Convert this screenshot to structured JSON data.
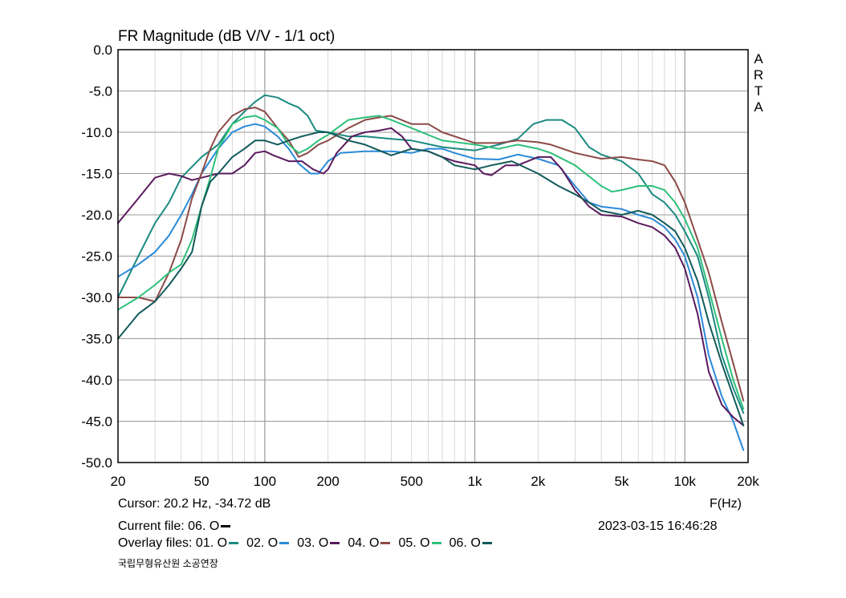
{
  "chart_data": {
    "type": "line",
    "title": "FR Magnitude (dB V/V - 1/1 oct)",
    "xlabel": "F(Hz)",
    "ylabel": "",
    "x_scale": "log",
    "xlim": [
      20,
      20000
    ],
    "ylim": [
      -50,
      0
    ],
    "grid": true,
    "x_ticks": [
      20,
      50,
      100,
      200,
      500,
      1000,
      2000,
      5000,
      10000,
      20000
    ],
    "x_tick_labels": [
      "20",
      "50",
      "100",
      "200",
      "500",
      "1k",
      "2k",
      "5k",
      "10k",
      "20k"
    ],
    "y_ticks": [
      0,
      -5,
      -10,
      -15,
      -20,
      -25,
      -30,
      -35,
      -40,
      -45,
      -50
    ],
    "y_tick_labels": [
      "0.0",
      "-5.0",
      "-10.0",
      "-15.0",
      "-20.0",
      "-25.0",
      "-30.0",
      "-35.0",
      "-40.0",
      "-45.0",
      "-50.0"
    ],
    "right_label": [
      "A",
      "R",
      "T",
      "A"
    ],
    "series": [
      {
        "name": "01. O",
        "color": "#1b8a80",
        "points": [
          [
            20,
            -30
          ],
          [
            25,
            -25
          ],
          [
            30,
            -21
          ],
          [
            35,
            -18.5
          ],
          [
            40,
            -15.5
          ],
          [
            50,
            -13
          ],
          [
            60,
            -11.5
          ],
          [
            70,
            -9
          ],
          [
            80,
            -7.5
          ],
          [
            90,
            -6.3
          ],
          [
            100,
            -5.5
          ],
          [
            115,
            -5.8
          ],
          [
            130,
            -6.5
          ],
          [
            145,
            -7
          ],
          [
            160,
            -8
          ],
          [
            175,
            -9.8
          ],
          [
            200,
            -10
          ],
          [
            250,
            -10.5
          ],
          [
            300,
            -10.5
          ],
          [
            400,
            -10.8
          ],
          [
            500,
            -11
          ],
          [
            700,
            -11.8
          ],
          [
            1000,
            -12.2
          ],
          [
            1300,
            -11.5
          ],
          [
            1600,
            -10.8
          ],
          [
            1900,
            -9
          ],
          [
            2200,
            -8.5
          ],
          [
            2600,
            -8.5
          ],
          [
            3000,
            -9.5
          ],
          [
            3500,
            -11.8
          ],
          [
            4000,
            -12.7
          ],
          [
            5000,
            -13.5
          ],
          [
            6000,
            -15
          ],
          [
            7000,
            -17.5
          ],
          [
            8000,
            -18.5
          ],
          [
            9000,
            -20
          ],
          [
            10000,
            -22
          ],
          [
            11500,
            -25
          ],
          [
            13000,
            -30
          ],
          [
            15000,
            -37
          ],
          [
            17000,
            -41
          ],
          [
            19000,
            -44
          ]
        ]
      },
      {
        "name": "02. O",
        "color": "#2a8ad8",
        "points": [
          [
            20,
            -27.5
          ],
          [
            25,
            -26
          ],
          [
            30,
            -24.5
          ],
          [
            35,
            -22.5
          ],
          [
            40,
            -20
          ],
          [
            45,
            -17.5
          ],
          [
            50,
            -15
          ],
          [
            60,
            -12
          ],
          [
            70,
            -10
          ],
          [
            80,
            -9.3
          ],
          [
            90,
            -9
          ],
          [
            100,
            -9.3
          ],
          [
            115,
            -10.5
          ],
          [
            130,
            -12
          ],
          [
            145,
            -13.8
          ],
          [
            165,
            -15
          ],
          [
            180,
            -15
          ],
          [
            200,
            -13.5
          ],
          [
            230,
            -12.5
          ],
          [
            300,
            -12.3
          ],
          [
            400,
            -12.3
          ],
          [
            500,
            -12.5
          ],
          [
            600,
            -12
          ],
          [
            700,
            -12
          ],
          [
            800,
            -12.5
          ],
          [
            1000,
            -13.2
          ],
          [
            1300,
            -13.3
          ],
          [
            1600,
            -12.7
          ],
          [
            2000,
            -13.2
          ],
          [
            2500,
            -14
          ],
          [
            3000,
            -16.5
          ],
          [
            3500,
            -18.5
          ],
          [
            4000,
            -19
          ],
          [
            5000,
            -19.3
          ],
          [
            6000,
            -20
          ],
          [
            7000,
            -20.5
          ],
          [
            8000,
            -21.5
          ],
          [
            9000,
            -23
          ],
          [
            10000,
            -25
          ],
          [
            11500,
            -30
          ],
          [
            13000,
            -37
          ],
          [
            15000,
            -42
          ],
          [
            17000,
            -45
          ],
          [
            19000,
            -48.5
          ]
        ]
      },
      {
        "name": "03. O",
        "color": "#5a1a5e",
        "points": [
          [
            20,
            -21
          ],
          [
            25,
            -18
          ],
          [
            30,
            -15.5
          ],
          [
            35,
            -15
          ],
          [
            40,
            -15.3
          ],
          [
            45,
            -15.8
          ],
          [
            50,
            -15.5
          ],
          [
            60,
            -15
          ],
          [
            70,
            -15
          ],
          [
            80,
            -14
          ],
          [
            90,
            -12.5
          ],
          [
            100,
            -12.3
          ],
          [
            110,
            -12.8
          ],
          [
            130,
            -13.5
          ],
          [
            150,
            -13.5
          ],
          [
            170,
            -14.5
          ],
          [
            190,
            -15
          ],
          [
            200,
            -14.5
          ],
          [
            220,
            -12.5
          ],
          [
            260,
            -10.5
          ],
          [
            300,
            -10
          ],
          [
            350,
            -9.8
          ],
          [
            400,
            -9.5
          ],
          [
            450,
            -10.5
          ],
          [
            500,
            -12
          ],
          [
            600,
            -12.3
          ],
          [
            700,
            -13
          ],
          [
            800,
            -13.5
          ],
          [
            1000,
            -14
          ],
          [
            1100,
            -15
          ],
          [
            1200,
            -15.2
          ],
          [
            1400,
            -14
          ],
          [
            1600,
            -14
          ],
          [
            2000,
            -13
          ],
          [
            2300,
            -13
          ],
          [
            2600,
            -14.5
          ],
          [
            3000,
            -17
          ],
          [
            3500,
            -19
          ],
          [
            4000,
            -20
          ],
          [
            5000,
            -20.2
          ],
          [
            6000,
            -21
          ],
          [
            7000,
            -21.5
          ],
          [
            8000,
            -22.5
          ],
          [
            9000,
            -24
          ],
          [
            10000,
            -26.5
          ],
          [
            11500,
            -32
          ],
          [
            13000,
            -39
          ],
          [
            15000,
            -43
          ],
          [
            17000,
            -44.5
          ],
          [
            19000,
            -45.5
          ]
        ]
      },
      {
        "name": "04. O",
        "color": "#8c4a48",
        "points": [
          [
            20,
            -30
          ],
          [
            25,
            -30
          ],
          [
            30,
            -30.5
          ],
          [
            35,
            -27
          ],
          [
            40,
            -23
          ],
          [
            45,
            -18
          ],
          [
            50,
            -15
          ],
          [
            55,
            -12
          ],
          [
            60,
            -10
          ],
          [
            70,
            -8
          ],
          [
            80,
            -7.2
          ],
          [
            90,
            -7
          ],
          [
            100,
            -7.5
          ],
          [
            115,
            -9.5
          ],
          [
            130,
            -11
          ],
          [
            145,
            -13
          ],
          [
            160,
            -12.5
          ],
          [
            180,
            -11.5
          ],
          [
            200,
            -11
          ],
          [
            250,
            -9.5
          ],
          [
            300,
            -8.5
          ],
          [
            350,
            -8.2
          ],
          [
            400,
            -8
          ],
          [
            500,
            -9
          ],
          [
            600,
            -9
          ],
          [
            700,
            -10
          ],
          [
            1000,
            -11.3
          ],
          [
            1300,
            -11.3
          ],
          [
            1600,
            -11
          ],
          [
            2000,
            -11.2
          ],
          [
            2300,
            -11.5
          ],
          [
            3000,
            -12.5
          ],
          [
            4000,
            -13.2
          ],
          [
            5000,
            -13
          ],
          [
            6000,
            -13.3
          ],
          [
            7000,
            -13.5
          ],
          [
            8000,
            -14
          ],
          [
            9000,
            -16
          ],
          [
            10000,
            -18.5
          ],
          [
            11500,
            -23
          ],
          [
            13000,
            -27
          ],
          [
            15000,
            -33
          ],
          [
            17000,
            -38
          ],
          [
            19000,
            -42.5
          ]
        ]
      },
      {
        "name": "05. O",
        "color": "#2ec07a",
        "points": [
          [
            20,
            -31.5
          ],
          [
            25,
            -30
          ],
          [
            30,
            -28.5
          ],
          [
            35,
            -27
          ],
          [
            40,
            -26
          ],
          [
            45,
            -23
          ],
          [
            50,
            -19
          ],
          [
            55,
            -15.5
          ],
          [
            60,
            -12
          ],
          [
            70,
            -9
          ],
          [
            80,
            -8.2
          ],
          [
            90,
            -8
          ],
          [
            100,
            -8.5
          ],
          [
            115,
            -9.5
          ],
          [
            130,
            -11.5
          ],
          [
            145,
            -12.5
          ],
          [
            160,
            -12
          ],
          [
            180,
            -11
          ],
          [
            200,
            -10.3
          ],
          [
            250,
            -8.5
          ],
          [
            300,
            -8.2
          ],
          [
            350,
            -8
          ],
          [
            400,
            -8.5
          ],
          [
            500,
            -9.5
          ],
          [
            700,
            -11
          ],
          [
            1000,
            -11.5
          ],
          [
            1300,
            -12
          ],
          [
            1600,
            -11.5
          ],
          [
            2000,
            -12
          ],
          [
            2300,
            -12.5
          ],
          [
            3000,
            -14
          ],
          [
            4000,
            -16.5
          ],
          [
            4500,
            -17.2
          ],
          [
            5000,
            -17
          ],
          [
            6000,
            -16.5
          ],
          [
            7000,
            -16.5
          ],
          [
            8000,
            -17
          ],
          [
            9000,
            -18.5
          ],
          [
            10000,
            -20.5
          ],
          [
            11500,
            -24
          ],
          [
            13000,
            -29
          ],
          [
            15000,
            -35
          ],
          [
            17000,
            -40
          ],
          [
            19000,
            -43.5
          ]
        ]
      },
      {
        "name": "06. O",
        "color": "#125a5a",
        "points": [
          [
            20,
            -35
          ],
          [
            25,
            -32
          ],
          [
            30,
            -30.5
          ],
          [
            35,
            -28.5
          ],
          [
            40,
            -26.5
          ],
          [
            45,
            -24.5
          ],
          [
            50,
            -19
          ],
          [
            55,
            -16
          ],
          [
            60,
            -15
          ],
          [
            70,
            -13
          ],
          [
            80,
            -12
          ],
          [
            90,
            -11
          ],
          [
            100,
            -11
          ],
          [
            115,
            -11.5
          ],
          [
            130,
            -11
          ],
          [
            150,
            -10.5
          ],
          [
            180,
            -10
          ],
          [
            200,
            -10
          ],
          [
            250,
            -11
          ],
          [
            300,
            -11.5
          ],
          [
            400,
            -12.8
          ],
          [
            500,
            -12
          ],
          [
            600,
            -12.3
          ],
          [
            700,
            -13
          ],
          [
            800,
            -14
          ],
          [
            1000,
            -14.5
          ],
          [
            1200,
            -14
          ],
          [
            1500,
            -13.5
          ],
          [
            2000,
            -15
          ],
          [
            2500,
            -16.5
          ],
          [
            3000,
            -17.5
          ],
          [
            3500,
            -18.5
          ],
          [
            4000,
            -19.5
          ],
          [
            5000,
            -20
          ],
          [
            6000,
            -19.5
          ],
          [
            7000,
            -20
          ],
          [
            8000,
            -21
          ],
          [
            9000,
            -22
          ],
          [
            10000,
            -24
          ],
          [
            11500,
            -28
          ],
          [
            13000,
            -33
          ],
          [
            15000,
            -38
          ],
          [
            17000,
            -42
          ],
          [
            19000,
            -45.5
          ]
        ]
      }
    ]
  },
  "info": {
    "cursor": "Cursor: 20.2 Hz, -34.72 dB",
    "xlabel": "F(Hz)",
    "current_file_label": "Current file: 06. O",
    "current_file_color": "#000000",
    "timestamp": "2023-03-15  16:46:28",
    "overlay_label": "Overlay files:",
    "overlay_files": [
      {
        "label": "01. O",
        "color": "#1b8a80"
      },
      {
        "label": "02. O",
        "color": "#2a8ad8"
      },
      {
        "label": "03. O",
        "color": "#5a1a5e"
      },
      {
        "label": "04. O",
        "color": "#8c4a48"
      },
      {
        "label": "05. O",
        "color": "#2ec07a"
      },
      {
        "label": "06. O",
        "color": "#125a5a"
      }
    ],
    "footnote": "국립무형유산원 소공연장"
  }
}
